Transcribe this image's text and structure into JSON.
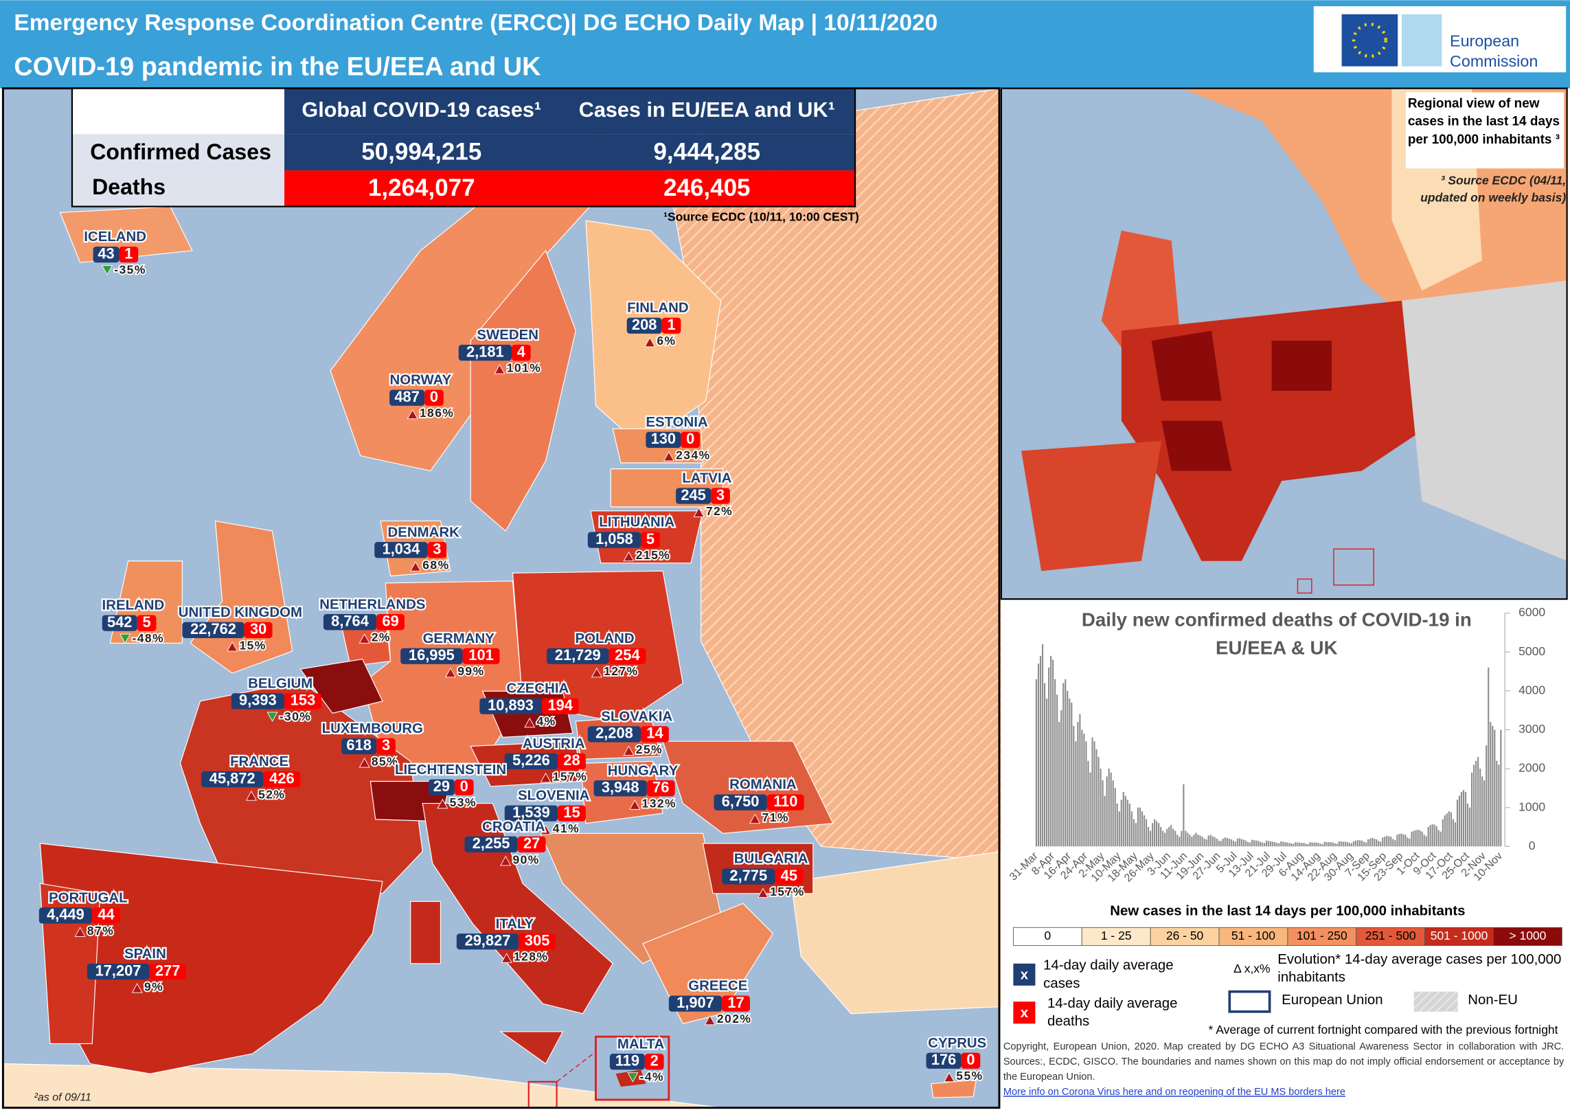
{
  "header": {
    "title": "Emergency Response Coordination  Centre (ERCC)| DG ECHO Daily Map  | 10/11/2020",
    "subtitle": "COVID-19 pandemic in the EU/EEA and UK",
    "logo": [
      "European",
      "Commission"
    ]
  },
  "table": {
    "headers": [
      "Global COVID-19 cases¹",
      "Cases in EU/EEA and UK¹"
    ],
    "rows": [
      [
        "Confirmed Cases",
        "50,994,215",
        "9,444,285"
      ],
      [
        "Deaths",
        "1,264,077",
        "246,405"
      ]
    ],
    "note": "¹Source ECDC (10/11, 10:00 CEST)"
  },
  "countries": [
    {
      "name": "ICELAND",
      "cases": "43",
      "deaths": "1",
      "evolution": "-35%"
    },
    {
      "name": "FINLAND",
      "cases": "208",
      "deaths": "1",
      "evolution": "6%"
    },
    {
      "name": "SWEDEN",
      "cases": "2,181",
      "deaths": "4",
      "evolution": "101%"
    },
    {
      "name": "NORWAY",
      "cases": "487",
      "deaths": "0",
      "evolution": "186%"
    },
    {
      "name": "ESTONIA",
      "cases": "130",
      "deaths": "0",
      "evolution": "234%"
    },
    {
      "name": "LATVIA",
      "cases": "245",
      "deaths": "3",
      "evolution": "72%"
    },
    {
      "name": "LITHUANIA",
      "cases": "1,058",
      "deaths": "5",
      "evolution": "215%"
    },
    {
      "name": "DENMARK",
      "cases": "1,034",
      "deaths": "3",
      "evolution": "68%"
    },
    {
      "name": "IRELAND",
      "cases": "542",
      "deaths": "5",
      "evolution": "-48%"
    },
    {
      "name": "UNITED KINGDOM",
      "cases": "22,762",
      "deaths": "30",
      "evolution": "15%"
    },
    {
      "name": "NETHERLANDS",
      "cases": "8,764",
      "deaths": "69",
      "evolution": "2%"
    },
    {
      "name": "GERMANY",
      "cases": "16,995",
      "deaths": "101",
      "evolution": "99%"
    },
    {
      "name": "POLAND",
      "cases": "21,729",
      "deaths": "254",
      "evolution": "127%"
    },
    {
      "name": "BELGIUM",
      "cases": "9,393",
      "deaths": "153",
      "evolution": "-30%"
    },
    {
      "name": "CZECHIA",
      "cases": "10,893",
      "deaths": "194",
      "evolution": "4%"
    },
    {
      "name": "SLOVAKIA",
      "cases": "2,208",
      "deaths": "14",
      "evolution": "25%"
    },
    {
      "name": "LUXEMBOURG",
      "cases": "618",
      "deaths": "3",
      "evolution": "85%"
    },
    {
      "name": "AUSTRIA",
      "cases": "5,226",
      "deaths": "28",
      "evolution": "157%"
    },
    {
      "name": "FRANCE",
      "cases": "45,872",
      "deaths": "426",
      "evolution": "52%"
    },
    {
      "name": "LIECHTENSTEIN",
      "cases": "29",
      "deaths": "0",
      "evolution": "53%"
    },
    {
      "name": "HUNGARY",
      "cases": "3,948",
      "deaths": "76",
      "evolution": "132%"
    },
    {
      "name": "ROMANIA",
      "cases": "6,750",
      "deaths": "110",
      "evolution": "71%"
    },
    {
      "name": "SLOVENIA",
      "cases": "1,539",
      "deaths": "15",
      "evolution": "41%"
    },
    {
      "name": "CROATIA",
      "cases": "2,255",
      "deaths": "27",
      "evolution": "90%"
    },
    {
      "name": "BULGARIA",
      "cases": "2,775",
      "deaths": "45",
      "evolution": "157%"
    },
    {
      "name": "PORTUGAL",
      "cases": "4,449",
      "deaths": "44",
      "evolution": "87%"
    },
    {
      "name": "SPAIN",
      "cases": "17,207",
      "deaths": "277",
      "evolution": "9%"
    },
    {
      "name": "ITALY",
      "cases": "29,827",
      "deaths": "305",
      "evolution": "128%"
    },
    {
      "name": "GREECE",
      "cases": "1,907",
      "deaths": "17",
      "evolution": "202%"
    },
    {
      "name": "MALTA",
      "cases": "119",
      "deaths": "2",
      "evolution": "-4%"
    },
    {
      "name": "CYPRUS",
      "cases": "176",
      "deaths": "0",
      "evolution": "55%"
    }
  ],
  "map_notes": {
    "footnote": "²as of 09/11",
    "inset_title": "Regional view of new cases in the last 14 days per 100,000 inhabitants ³",
    "inset_source": "³ Source ECDC (04/11, updated on weekly basis)"
  },
  "chart_data": {
    "type": "bar",
    "title": "Daily new confirmed deaths of COVID-19 in EU/EEA & UK",
    "color": "#8c8c8c",
    "categories": [
      "31-Mar",
      null,
      null,
      null,
      null,
      null,
      null,
      null,
      "8-Apr",
      null,
      null,
      null,
      null,
      null,
      null,
      null,
      "16-Apr",
      null,
      null,
      null,
      null,
      null,
      null,
      null,
      "24-Apr",
      null,
      null,
      null,
      null,
      null,
      null,
      null,
      "2-May",
      null,
      null,
      null,
      null,
      null,
      null,
      null,
      "10-May",
      null,
      null,
      null,
      null,
      null,
      null,
      null,
      "18-May",
      null,
      null,
      null,
      null,
      null,
      null,
      null,
      "26-May",
      null,
      null,
      null,
      null,
      null,
      null,
      null,
      "3-Jun",
      null,
      null,
      null,
      null,
      null,
      null,
      null,
      "11-Jun",
      null,
      null,
      null,
      null,
      null,
      null,
      null,
      "19-Jun",
      null,
      null,
      null,
      null,
      null,
      null,
      null,
      "27-Jun",
      null,
      null,
      null,
      null,
      null,
      null,
      null,
      "5-Jul",
      null,
      null,
      null,
      null,
      null,
      null,
      null,
      "13-Jul",
      null,
      null,
      null,
      null,
      null,
      null,
      null,
      "21-Jul",
      null,
      null,
      null,
      null,
      null,
      null,
      null,
      "29-Jul",
      null,
      null,
      null,
      null,
      null,
      null,
      null,
      "6-Aug",
      null,
      null,
      null,
      null,
      null,
      null,
      null,
      "14-Aug",
      null,
      null,
      null,
      null,
      null,
      null,
      null,
      "22-Aug",
      null,
      null,
      null,
      null,
      null,
      null,
      null,
      "30-Aug",
      null,
      null,
      null,
      null,
      null,
      null,
      null,
      "7-Sep",
      null,
      null,
      null,
      null,
      null,
      null,
      null,
      "15-Sep",
      null,
      null,
      null,
      null,
      null,
      null,
      null,
      "23-Sep",
      null,
      null,
      null,
      null,
      null,
      null,
      null,
      "1-Oct",
      null,
      null,
      null,
      null,
      null,
      null,
      null,
      "9-Oct",
      null,
      null,
      null,
      null,
      null,
      null,
      null,
      "17-Oct",
      null,
      null,
      null,
      null,
      null,
      null,
      null,
      "25-Oct",
      null,
      null,
      null,
      null,
      null,
      null,
      null,
      "2-Nov",
      null,
      null,
      null,
      null,
      null,
      null,
      null,
      "10-Nov"
    ],
    "values": [
      4300,
      4700,
      4900,
      5200,
      4200,
      3800,
      4600,
      4900,
      4800,
      4300,
      3900,
      3200,
      3500,
      4200,
      4300,
      4000,
      3800,
      3700,
      3100,
      2700,
      3200,
      3400,
      3000,
      2900,
      2700,
      2200,
      1900,
      2800,
      2700,
      2500,
      2300,
      2000,
      1700,
      1300,
      1800,
      2000,
      1900,
      1700,
      1500,
      1100,
      900,
      1200,
      1400,
      1300,
      1200,
      1100,
      900,
      700,
      600,
      1000,
      1000,
      900,
      800,
      700,
      500,
      400,
      600,
      700,
      650,
      600,
      500,
      400,
      350,
      450,
      500,
      550,
      450,
      400,
      300,
      250,
      400,
      1600,
      400,
      350,
      300,
      250,
      300,
      350,
      300,
      280,
      250,
      200,
      180,
      280,
      300,
      260,
      240,
      200,
      150,
      140,
      200,
      230,
      220,
      200,
      180,
      150,
      120,
      200,
      210,
      190,
      170,
      150,
      110,
      100,
      170,
      160,
      150,
      140,
      120,
      100,
      90,
      150,
      140,
      130,
      120,
      110,
      90,
      80,
      130,
      120,
      110,
      100,
      90,
      80,
      70,
      110,
      100,
      100,
      90,
      90,
      70,
      60,
      110,
      100,
      100,
      100,
      90,
      70,
      60,
      120,
      110,
      110,
      110,
      100,
      80,
      70,
      130,
      130,
      120,
      120,
      110,
      90,
      80,
      130,
      150,
      160,
      160,
      150,
      120,
      100,
      180,
      200,
      220,
      200,
      180,
      140,
      120,
      230,
      250,
      270,
      260,
      250,
      190,
      160,
      300,
      320,
      330,
      310,
      300,
      230,
      200,
      380,
      400,
      420,
      430,
      410,
      380,
      300,
      260,
      500,
      550,
      570,
      560,
      520,
      420,
      380,
      700,
      800,
      850,
      900,
      880,
      700,
      620,
      1200,
      1300,
      1400,
      1450,
      1400,
      1100,
      1000,
      1900,
      2100,
      2200,
      2300,
      2000,
      1800,
      1700,
      2600,
      4600,
      3200,
      3100,
      3000,
      2200,
      2100,
      3000
    ],
    "ylim": [
      0,
      6000
    ],
    "yticks": [
      0,
      1000,
      2000,
      3000,
      4000,
      5000,
      6000
    ]
  },
  "legend": {
    "title": "New cases in the last 14 days per 100,000 inhabitants",
    "classes": [
      {
        "label": "0",
        "color": "#ffffff"
      },
      {
        "label": "1 - 25",
        "color": "#fde9c9"
      },
      {
        "label": "26 - 50",
        "color": "#fcd3a0"
      },
      {
        "label": "51 - 100",
        "color": "#f9b77d"
      },
      {
        "label": "101 - 250",
        "color": "#f2915f"
      },
      {
        "label": "251 - 500",
        "color": "#e4583a"
      },
      {
        "label": "501 - 1000",
        "color": "#c42b1b"
      },
      {
        "label": "> 1000",
        "color": "#8b0b0b"
      }
    ],
    "box_mark": "x",
    "cases": "14-day daily average cases",
    "deaths": "14-day daily average deaths",
    "evolution_mark": "Δ x,x%",
    "evolution": "Evolution* 14-day average cases per 100,000 inhabitants",
    "eu": "European Union",
    "non_eu": "Non-EU",
    "note": "* Average of current fortnight compared with the previous fortnight"
  },
  "footer": {
    "copyright": "Copyright, European Union, 2020. Map created by DG ECHO A3 Situational Awareness Sector in collaboration with JRC. Sources:, ECDC, GISCO. The boundaries and names shown on this map do not imply official endorsement or acceptance by the European Union.",
    "links": "More info on Corona Virus here and on reopening of the EU MS borders here"
  }
}
